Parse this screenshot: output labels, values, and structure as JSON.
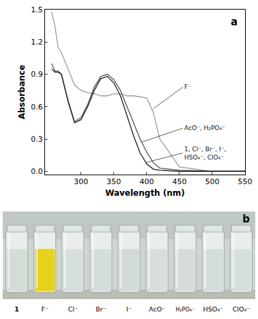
{
  "chart_data": {
    "type": "line",
    "panel_label": "a",
    "x_label": "Wavelength (nm)",
    "y_label": "Absorbance",
    "x": [
      255,
      260,
      265,
      270,
      280,
      290,
      300,
      310,
      320,
      330,
      340,
      350,
      360,
      370,
      380,
      390,
      400,
      410,
      420,
      450,
      500,
      550
    ],
    "series": [
      {
        "name": "F⁻",
        "color": "#9a9a9a",
        "values": [
          1.48,
          1.35,
          1.15,
          1.1,
          0.95,
          0.8,
          0.75,
          0.73,
          0.72,
          0.7,
          0.7,
          0.72,
          0.72,
          0.7,
          0.7,
          0.69,
          0.68,
          0.55,
          0.3,
          0.04,
          0.0,
          0.0
        ]
      },
      {
        "name": "AcO⁻, H₂PO₄⁻",
        "color": "#555555",
        "values": [
          1.0,
          0.93,
          0.93,
          0.9,
          0.66,
          0.46,
          0.5,
          0.62,
          0.78,
          0.88,
          0.9,
          0.85,
          0.75,
          0.6,
          0.45,
          0.3,
          0.18,
          0.08,
          0.03,
          0.01,
          0.0,
          0.0
        ]
      },
      {
        "name": "1, Cl⁻, Br⁻, I⁻,\nHSO₄⁻, ClO₄⁻",
        "color": "#1a1a1a",
        "values": [
          0.95,
          0.92,
          0.92,
          0.9,
          0.65,
          0.45,
          0.48,
          0.6,
          0.75,
          0.86,
          0.88,
          0.82,
          0.7,
          0.52,
          0.33,
          0.17,
          0.07,
          0.02,
          0.01,
          0.0,
          0.0,
          0.0
        ]
      }
    ],
    "xlim": [
      245,
      550
    ],
    "xticks": [
      300,
      350,
      400,
      450,
      500,
      550
    ],
    "ylim": [
      -0.03,
      1.5
    ],
    "yticks": [
      {
        "value": 0,
        "label": "0.0"
      },
      {
        "value": 0.3,
        "label": "0.3"
      },
      {
        "value": 0.6,
        "label": "0.6"
      },
      {
        "value": 0.9,
        "label": "0.9"
      },
      {
        "value": 1.2,
        "label": "1.2"
      },
      {
        "value": 1.5,
        "label": "1.5"
      }
    ],
    "grid": false
  },
  "photo": {
    "panel_label": "b",
    "vials": [
      {
        "label": "1",
        "color": "#d4dcd6"
      },
      {
        "label": "F⁻",
        "color": "#e6d21c"
      },
      {
        "label": "Cl⁻",
        "color": "#d6dede"
      },
      {
        "label": "Br⁻",
        "color": "#d4dcdc"
      },
      {
        "label": "I⁻",
        "color": "#d2dad8"
      },
      {
        "label": "AcO⁻",
        "color": "#d8dedc"
      },
      {
        "label": "H₂PO₄⁻",
        "color": "#d6dcda"
      },
      {
        "label": "HSO₄⁻",
        "color": "#d4dcdc"
      },
      {
        "label": "ClO₄⁻",
        "color": "#d6dede"
      }
    ]
  }
}
